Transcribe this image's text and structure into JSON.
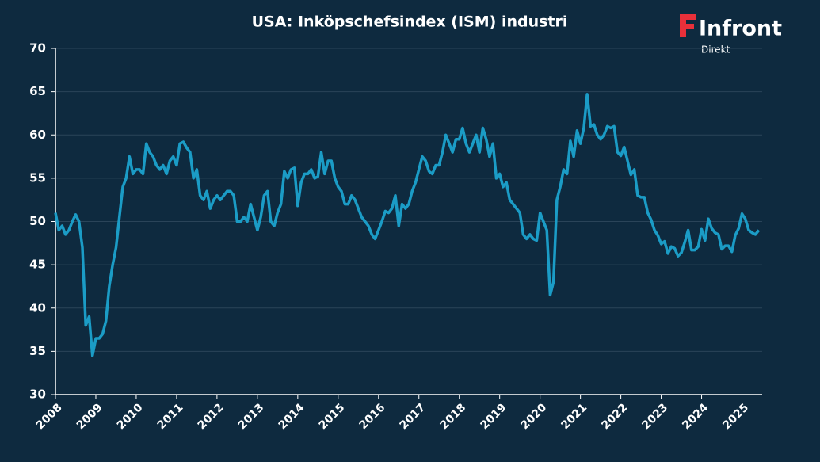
{
  "chart_data": {
    "type": "line",
    "title": "USA: Inköpschefsindex (ISM) industri",
    "x": [
      2008,
      2008.083,
      2008.167,
      2008.25,
      2008.333,
      2008.417,
      2008.5,
      2008.583,
      2008.667,
      2008.75,
      2008.833,
      2008.917,
      2009,
      2009.083,
      2009.167,
      2009.25,
      2009.333,
      2009.417,
      2009.5,
      2009.583,
      2009.667,
      2009.75,
      2009.833,
      2009.917,
      2010,
      2010.083,
      2010.167,
      2010.25,
      2010.333,
      2010.417,
      2010.5,
      2010.583,
      2010.667,
      2010.75,
      2010.833,
      2010.917,
      2011,
      2011.083,
      2011.167,
      2011.25,
      2011.333,
      2011.417,
      2011.5,
      2011.583,
      2011.667,
      2011.75,
      2011.833,
      2011.917,
      2012,
      2012.083,
      2012.167,
      2012.25,
      2012.333,
      2012.417,
      2012.5,
      2012.583,
      2012.667,
      2012.75,
      2012.833,
      2012.917,
      2013,
      2013.083,
      2013.167,
      2013.25,
      2013.333,
      2013.417,
      2013.5,
      2013.583,
      2013.667,
      2013.75,
      2013.833,
      2013.917,
      2014,
      2014.083,
      2014.167,
      2014.25,
      2014.333,
      2014.417,
      2014.5,
      2014.583,
      2014.667,
      2014.75,
      2014.833,
      2014.917,
      2015,
      2015.083,
      2015.167,
      2015.25,
      2015.333,
      2015.417,
      2015.5,
      2015.583,
      2015.667,
      2015.75,
      2015.833,
      2015.917,
      2016,
      2016.083,
      2016.167,
      2016.25,
      2016.333,
      2016.417,
      2016.5,
      2016.583,
      2016.667,
      2016.75,
      2016.833,
      2016.917,
      2017,
      2017.083,
      2017.167,
      2017.25,
      2017.333,
      2017.417,
      2017.5,
      2017.583,
      2017.667,
      2017.75,
      2017.833,
      2017.917,
      2018,
      2018.083,
      2018.167,
      2018.25,
      2018.333,
      2018.417,
      2018.5,
      2018.583,
      2018.667,
      2018.75,
      2018.833,
      2018.917,
      2019,
      2019.083,
      2019.167,
      2019.25,
      2019.333,
      2019.417,
      2019.5,
      2019.583,
      2019.667,
      2019.75,
      2019.833,
      2019.917,
      2020,
      2020.083,
      2020.167,
      2020.25,
      2020.333,
      2020.417,
      2020.5,
      2020.583,
      2020.667,
      2020.75,
      2020.833,
      2020.917,
      2021,
      2021.083,
      2021.167,
      2021.25,
      2021.333,
      2021.417,
      2021.5,
      2021.583,
      2021.667,
      2021.75,
      2021.833,
      2021.917,
      2022,
      2022.083,
      2022.167,
      2022.25,
      2022.333,
      2022.417,
      2022.5,
      2022.583,
      2022.667,
      2022.75,
      2022.833,
      2022.917,
      2023,
      2023.083,
      2023.167,
      2023.25,
      2023.333,
      2023.417,
      2023.5,
      2023.583,
      2023.667,
      2023.75,
      2023.833,
      2023.917,
      2024,
      2024.083,
      2024.167,
      2024.25,
      2024.333,
      2024.417,
      2024.5,
      2024.583,
      2024.667,
      2024.75,
      2024.833,
      2024.917,
      2025,
      2025.083,
      2025.167,
      2025.25,
      2025.333,
      2025.417
    ],
    "values": [
      51,
      49,
      49.5,
      48.5,
      49,
      50,
      50.8,
      50,
      47,
      38,
      39,
      34.5,
      36.5,
      36.5,
      37,
      38.5,
      42.5,
      45,
      47,
      50.5,
      54,
      55,
      57.5,
      55.5,
      56,
      56,
      55.5,
      59,
      58,
      57.5,
      56.5,
      56,
      56.5,
      55.5,
      57,
      57.5,
      56.5,
      59,
      59.2,
      58.5,
      58,
      55,
      56,
      53,
      52.5,
      53.5,
      51.5,
      52.5,
      53,
      52.5,
      53,
      53.5,
      53.5,
      53,
      50,
      50,
      50.5,
      50,
      52,
      50.5,
      49,
      50.5,
      53,
      53.5,
      50,
      49.5,
      51,
      52,
      55.8,
      55,
      56,
      56.2,
      51.8,
      54.5,
      55.5,
      55.5,
      56,
      55,
      55.2,
      58,
      55.5,
      57,
      57,
      55,
      54,
      53.5,
      52,
      52,
      53,
      52.5,
      51.5,
      50.5,
      50,
      49.5,
      48.5,
      48,
      49,
      50,
      51.2,
      51,
      51.5,
      53,
      49.5,
      52,
      51.5,
      52,
      53.5,
      54.5,
      56,
      57.5,
      57,
      55.8,
      55.5,
      56.5,
      56.5,
      58,
      60,
      59,
      58,
      59.5,
      59.5,
      60.8,
      59,
      58,
      59,
      60,
      58,
      60.8,
      59.5,
      57.5,
      59,
      55,
      55.5,
      54,
      54.5,
      52.5,
      52,
      51.5,
      51,
      48.5,
      48,
      48.5,
      48,
      47.8,
      51,
      50,
      49,
      41.5,
      43,
      52.5,
      54,
      56,
      55.5,
      59.3,
      57.5,
      60.5,
      59,
      60.8,
      64.7,
      61,
      61.2,
      60,
      59.5,
      60,
      61,
      60.8,
      61,
      58,
      57.6,
      58.6,
      57,
      55.4,
      56,
      53,
      52.8,
      52.8,
      51,
      50.2,
      49,
      48.4,
      47.4,
      47.7,
      46.3,
      47.1,
      46.9,
      46,
      46.4,
      47.6,
      49,
      46.7,
      46.7,
      47.1,
      49.1,
      47.8,
      50.3,
      49.2,
      48.7,
      48.5,
      46.8,
      47.2,
      47.2,
      46.5,
      48.4,
      49.2,
      50.9,
      50.3,
      49,
      48.7,
      48.5,
      49
    ],
    "color": "#1b9cc6",
    "xlim": [
      2008,
      2025.5
    ],
    "xticks": [
      2008,
      2009,
      2010,
      2011,
      2012,
      2013,
      2014,
      2015,
      2016,
      2017,
      2018,
      2019,
      2020,
      2021,
      2022,
      2023,
      2024,
      2025
    ],
    "ylim": [
      30,
      70
    ],
    "yticks": [
      30,
      35,
      40,
      45,
      50,
      55,
      60,
      65,
      70
    ],
    "grid": true
  },
  "brand": {
    "name": "Infront",
    "sub": "Direkt"
  }
}
